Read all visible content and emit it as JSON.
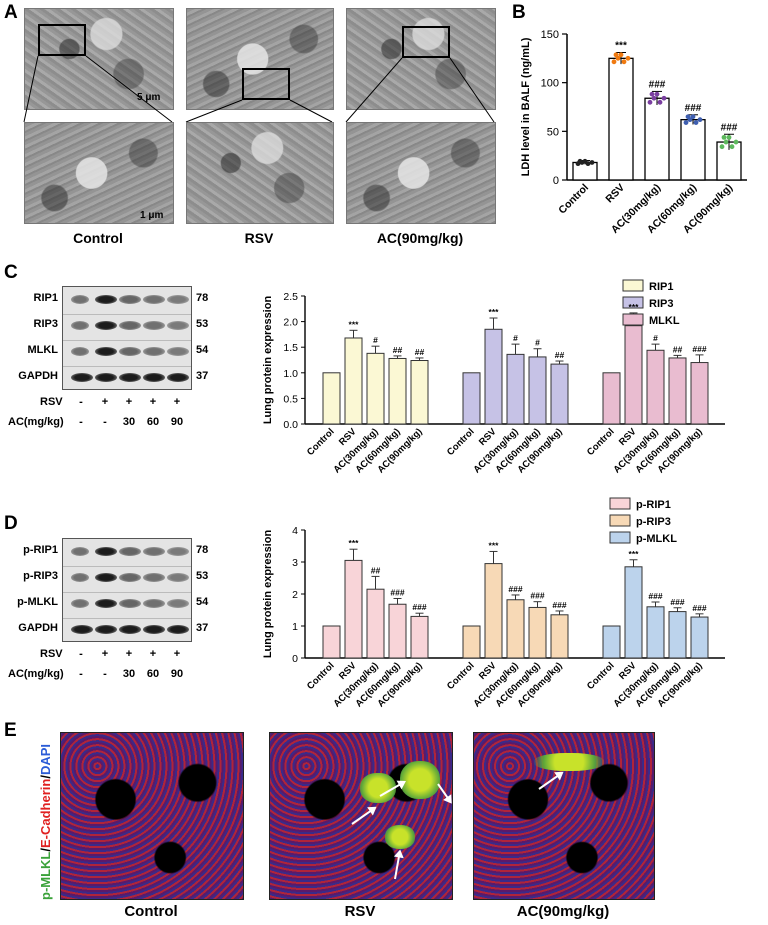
{
  "panelA": {
    "letter": "A",
    "captions": [
      "Control",
      "RSV",
      "AC(90mg/kg)"
    ],
    "scale_top": "5 μm",
    "scale_bottom": "1 μm"
  },
  "panelC": {
    "letter": "C",
    "blot_labels": [
      "RIP1",
      "RIP3",
      "MLKL",
      "GAPDH"
    ],
    "mw": [
      "78",
      "53",
      "54",
      "37"
    ],
    "rsv_label": "RSV",
    "ac_label": "AC(mg/kg)",
    "rsv_row": [
      "-",
      "+",
      "+",
      "+",
      "+"
    ],
    "ac_row": [
      "-",
      "-",
      "30",
      "60",
      "90"
    ]
  },
  "panelD": {
    "letter": "D",
    "blot_labels": [
      "p-RIP1",
      "p-RIP3",
      "p-MLKL",
      "GAPDH"
    ],
    "mw": [
      "78",
      "53",
      "54",
      "37"
    ],
    "rsv_label": "RSV",
    "ac_label": "AC(mg/kg)",
    "rsv_row": [
      "-",
      "+",
      "+",
      "+",
      "+"
    ],
    "ac_row": [
      "-",
      "-",
      "30",
      "60",
      "90"
    ]
  },
  "panelE": {
    "letter": "E",
    "captions": [
      "Control",
      "RSV",
      "AC(90mg/kg)"
    ],
    "side_label_green": "p-MLKL",
    "side_label_red": "E-Cadherin",
    "side_label_blue": "DAPI",
    "slash": "/"
  },
  "chart_data": [
    {
      "id": "B",
      "letter": "B",
      "type": "bar",
      "categories": [
        "Control",
        "RSV",
        "AC(30mg/kg)",
        "AC(60mg/kg)",
        "AC(90mg/kg)"
      ],
      "values": [
        18,
        125,
        84,
        62,
        39
      ],
      "errors": [
        2,
        6,
        7,
        5,
        8
      ],
      "annotations": [
        "",
        "***",
        "###",
        "###",
        "###"
      ],
      "ylabel": "LDH level in BALF (ng/mL)",
      "ylim": [
        0,
        150
      ],
      "yticks": [
        "0",
        "50",
        "100",
        "150"
      ],
      "point_colors": [
        "#222222",
        "#f07a10",
        "#7a3ea0",
        "#3f5fb0",
        "#5cb85c"
      ]
    },
    {
      "id": "C",
      "type": "bar",
      "ylabel": "Lung protein expression",
      "ylim": [
        0,
        2.5
      ],
      "yticks": [
        "0.0",
        "0.5",
        "1.0",
        "1.5",
        "2.0",
        "2.5"
      ],
      "categories": [
        "Control",
        "RSV",
        "AC(30mg/kg)",
        "AC(60mg/kg)",
        "AC(90mg/kg)"
      ],
      "series": [
        {
          "name": "RIP1",
          "color": "#fbf8d4",
          "values": [
            1.0,
            1.68,
            1.38,
            1.28,
            1.24
          ],
          "errors": [
            0,
            0.15,
            0.14,
            0.05,
            0.05
          ],
          "annotations": [
            "",
            "***",
            "#",
            "##",
            "##"
          ]
        },
        {
          "name": "RIP3",
          "color": "#c6c2e6",
          "values": [
            1.0,
            1.85,
            1.36,
            1.31,
            1.17
          ],
          "errors": [
            0,
            0.22,
            0.2,
            0.16,
            0.06
          ],
          "annotations": [
            "",
            "***",
            "#",
            "#",
            "##"
          ]
        },
        {
          "name": "MLKL",
          "color": "#e9bcd0",
          "values": [
            1.0,
            1.92,
            1.44,
            1.29,
            1.2
          ],
          "errors": [
            0,
            0.25,
            0.12,
            0.05,
            0.15
          ],
          "annotations": [
            "",
            "***",
            "#",
            "##",
            "###"
          ]
        }
      ]
    },
    {
      "id": "D",
      "type": "bar",
      "ylabel": "Lung protein expression",
      "ylim": [
        0,
        4
      ],
      "yticks": [
        "0",
        "1",
        "2",
        "3",
        "4"
      ],
      "categories": [
        "Control",
        "RSV",
        "AC(30mg/kg)",
        "AC(60mg/kg)",
        "AC(90mg/kg)"
      ],
      "series": [
        {
          "name": "p-RIP1",
          "color": "#f8d4d8",
          "values": [
            1.0,
            3.05,
            2.15,
            1.68,
            1.3
          ],
          "errors": [
            0,
            0.35,
            0.4,
            0.18,
            0.1
          ],
          "annotations": [
            "",
            "***",
            "##",
            "###",
            "###"
          ]
        },
        {
          "name": "p-RIP3",
          "color": "#f7d9b6",
          "values": [
            1.0,
            2.95,
            1.82,
            1.58,
            1.35
          ],
          "errors": [
            0,
            0.38,
            0.15,
            0.18,
            0.12
          ],
          "annotations": [
            "",
            "***",
            "###",
            "###",
            "###"
          ]
        },
        {
          "name": "p-MLKL",
          "color": "#bcd3ec",
          "values": [
            1.0,
            2.85,
            1.6,
            1.45,
            1.28
          ],
          "errors": [
            0,
            0.22,
            0.15,
            0.12,
            0.1
          ],
          "annotations": [
            "",
            "***",
            "###",
            "###",
            "###"
          ]
        }
      ]
    }
  ]
}
